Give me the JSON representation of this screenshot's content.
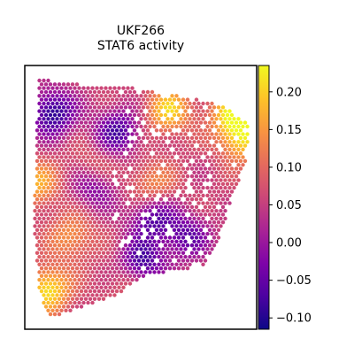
{
  "chart_data": {
    "type": "heatmap",
    "subtype": "spatial spot map (hexagonal grid)",
    "title_line1": "UKF266",
    "title_line2": "STAT6 activity",
    "xlabel": "",
    "ylabel": "",
    "axis_ticks": "none",
    "colormap": "plasma",
    "colorbar": {
      "range": [
        -0.115,
        0.235
      ],
      "ticks": [
        -0.1,
        -0.05,
        0.0,
        0.05,
        0.1,
        0.15,
        0.2
      ],
      "tick_labels": [
        "−0.10",
        "−0.05",
        "0.00",
        "0.05",
        "0.10",
        "0.15",
        "0.20"
      ],
      "placement": "right"
    },
    "value_summary": {
      "min_approx": -0.11,
      "max_approx": 0.23,
      "high_regions": [
        "left edge",
        "bottom-left corner",
        "upper-right edge"
      ],
      "low_regions": [
        "upper-left interior",
        "center-left",
        "lower-center",
        "center-right"
      ]
    },
    "hot_spots": [
      {
        "x": 0.62,
        "y": 0.83,
        "value": 0.2
      },
      {
        "x": 0.9,
        "y": 0.82,
        "value": 0.22
      },
      {
        "x": 0.94,
        "y": 0.72,
        "value": 0.2
      },
      {
        "x": 0.1,
        "y": 0.15,
        "value": 0.22
      },
      {
        "x": 0.05,
        "y": 0.55,
        "value": 0.17
      },
      {
        "x": 0.2,
        "y": 0.35,
        "value": 0.15
      },
      {
        "x": 0.45,
        "y": 0.2,
        "value": 0.12
      },
      {
        "x": 0.55,
        "y": 0.55,
        "value": 0.14
      },
      {
        "x": 0.3,
        "y": 0.6,
        "value": 0.14
      }
    ],
    "cold_spots": [
      {
        "x": 0.12,
        "y": 0.82,
        "value": -0.1
      },
      {
        "x": 0.3,
        "y": 0.55,
        "value": -0.06
      },
      {
        "x": 0.5,
        "y": 0.25,
        "value": -0.1
      },
      {
        "x": 0.7,
        "y": 0.35,
        "value": -0.05
      },
      {
        "x": 0.55,
        "y": 0.42,
        "value": -0.06
      },
      {
        "x": 0.4,
        "y": 0.75,
        "value": -0.07
      }
    ]
  }
}
